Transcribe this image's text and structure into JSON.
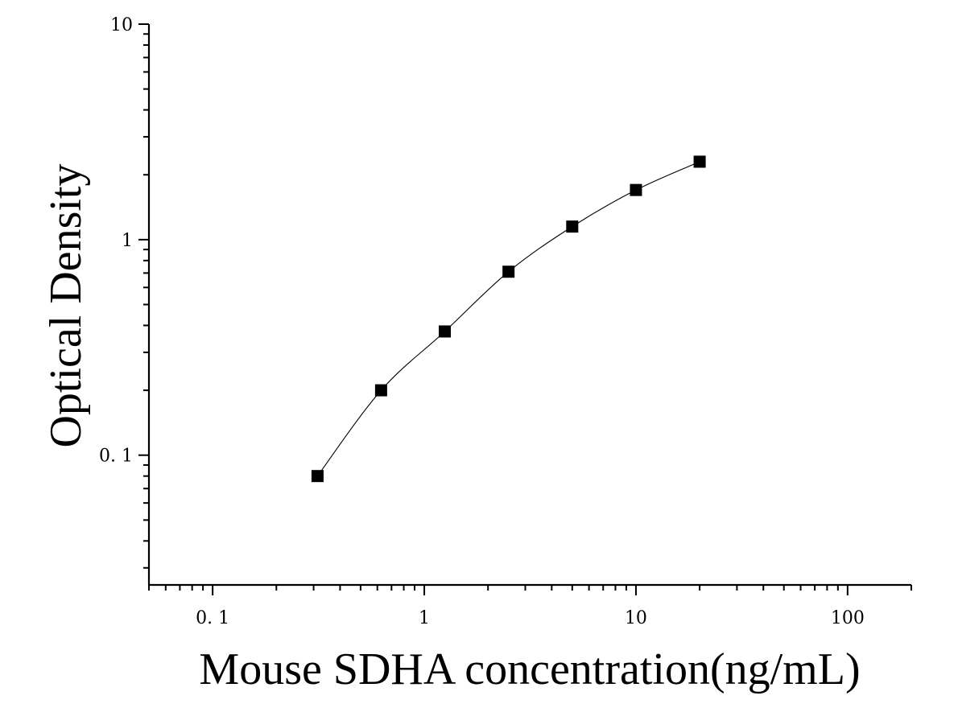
{
  "chart_data": {
    "type": "scatter",
    "xlabel": "Mouse SDHA concentration(ng/mL)",
    "ylabel": "Optical Density",
    "xscale": "log",
    "yscale": "log",
    "xlim": [
      0.05,
      200
    ],
    "ylim": [
      0.025,
      10
    ],
    "x_ticks": [
      0.1,
      1,
      10,
      100
    ],
    "x_tick_labels": [
      "0. 1",
      "1",
      "10",
      "100"
    ],
    "y_ticks": [
      0.1,
      1,
      10
    ],
    "y_tick_labels": [
      "0. 1",
      "1",
      "10"
    ],
    "grid": false,
    "legend": "none",
    "marker": "square",
    "color": "#000000",
    "fit_curve": true,
    "series": [
      {
        "x": [
          0.313,
          0.625,
          1.25,
          2.5,
          5,
          10,
          20
        ],
        "y": [
          0.08,
          0.2,
          0.375,
          0.71,
          1.15,
          1.7,
          2.3
        ]
      }
    ]
  }
}
